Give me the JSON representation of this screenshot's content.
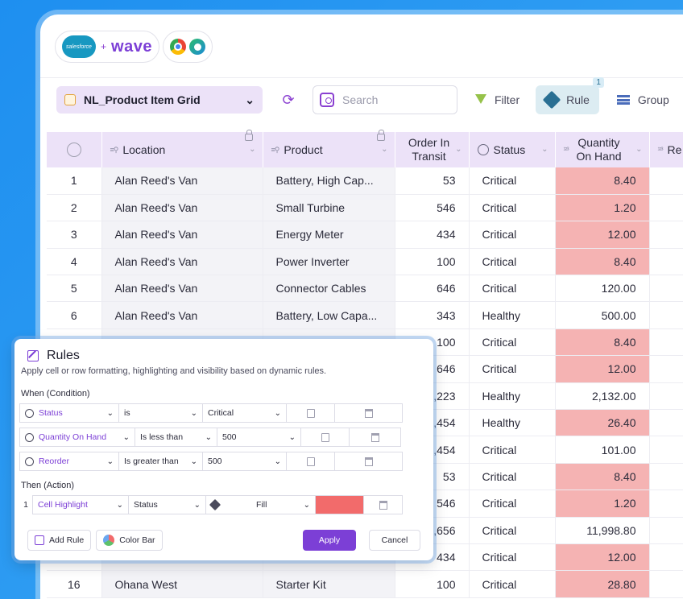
{
  "brand": {
    "salesforce": "salesforce",
    "plus": "+",
    "wave": "wave"
  },
  "toolbar": {
    "grid_name": "NL_Product Item Grid",
    "search_placeholder": "Search",
    "filter": "Filter",
    "rule": "Rule",
    "rule_badge": "1",
    "group": "Group"
  },
  "columns": [
    "Location",
    "Product",
    "Order In Transit",
    "Status",
    "Quantity On Hand",
    "Re"
  ],
  "rows": [
    {
      "n": "1",
      "loc": "Alan Reed's Van",
      "prod": "Battery, High Cap...",
      "transit": "53",
      "status": "Critical",
      "qty": "8.40",
      "hl": true
    },
    {
      "n": "2",
      "loc": "Alan Reed's Van",
      "prod": "Small Turbine",
      "transit": "546",
      "status": "Critical",
      "qty": "1.20",
      "hl": true
    },
    {
      "n": "3",
      "loc": "Alan Reed's Van",
      "prod": "Energy Meter",
      "transit": "434",
      "status": "Critical",
      "qty": "12.00",
      "hl": true
    },
    {
      "n": "4",
      "loc": "Alan Reed's Van",
      "prod": "Power Inverter",
      "transit": "100",
      "status": "Critical",
      "qty": "8.40",
      "hl": true
    },
    {
      "n": "5",
      "loc": "Alan Reed's Van",
      "prod": "Connector Cables",
      "transit": "646",
      "status": "Critical",
      "qty": "120.00",
      "hl": false
    },
    {
      "n": "6",
      "loc": "Alan Reed's Van",
      "prod": "Battery, Low Capa...",
      "transit": "343",
      "status": "Healthy",
      "qty": "500.00",
      "hl": false
    },
    {
      "n": "",
      "loc": "",
      "prod": "",
      "transit": "100",
      "status": "Critical",
      "qty": "8.40",
      "hl": true
    },
    {
      "n": "",
      "loc": "",
      "prod": "",
      "transit": "646",
      "status": "Critical",
      "qty": "12.00",
      "hl": true
    },
    {
      "n": "",
      "loc": "",
      "prod": "",
      "transit": "3,223",
      "status": "Healthy",
      "qty": "2,132.00",
      "hl": false
    },
    {
      "n": "",
      "loc": "",
      "prod": "",
      "transit": "5,454",
      "status": "Healthy",
      "qty": "26.40",
      "hl": true
    },
    {
      "n": "",
      "loc": "",
      "prod": "",
      "transit": "5,454",
      "status": "Critical",
      "qty": "101.00",
      "hl": false
    },
    {
      "n": "",
      "loc": "",
      "prod": "",
      "transit": "53",
      "status": "Critical",
      "qty": "8.40",
      "hl": true
    },
    {
      "n": "",
      "loc": "",
      "prod": "",
      "transit": "546",
      "status": "Critical",
      "qty": "1.20",
      "hl": true
    },
    {
      "n": "",
      "loc": "",
      "prod": "",
      "transit": "7,656",
      "status": "Critical",
      "qty": "11,998.80",
      "hl": false
    },
    {
      "n": "",
      "loc": "",
      "prod": "",
      "transit": "434",
      "status": "Critical",
      "qty": "12.00",
      "hl": true
    },
    {
      "n": "16",
      "loc": "Ohana West",
      "prod": "Starter Kit",
      "transit": "100",
      "status": "Critical",
      "qty": "28.80",
      "hl": true
    }
  ],
  "rules": {
    "title": "Rules",
    "subtitle": "Apply cell or row formatting, highlighting and visibility based on dynamic rules.",
    "when_label": "When (Condition)",
    "conditions": [
      {
        "field": "Status",
        "op": "is",
        "value": "Critical"
      },
      {
        "field": "Quantity On Hand",
        "op": "Is less than",
        "value": "500"
      },
      {
        "field": "Reorder",
        "op": "Is greater than",
        "value": "500"
      }
    ],
    "then_label": "Then (Action)",
    "action": {
      "index": "1",
      "type": "Cell Highlight",
      "target": "Status",
      "mode": "Fill",
      "color": "#f26b6b"
    },
    "add_rule": "Add Rule",
    "color_bar": "Color Bar",
    "apply": "Apply",
    "cancel": "Cancel"
  },
  "colors": {
    "accent": "#7c3fd6",
    "highlight": "#f5b3b3",
    "header": "#ece2f8"
  }
}
